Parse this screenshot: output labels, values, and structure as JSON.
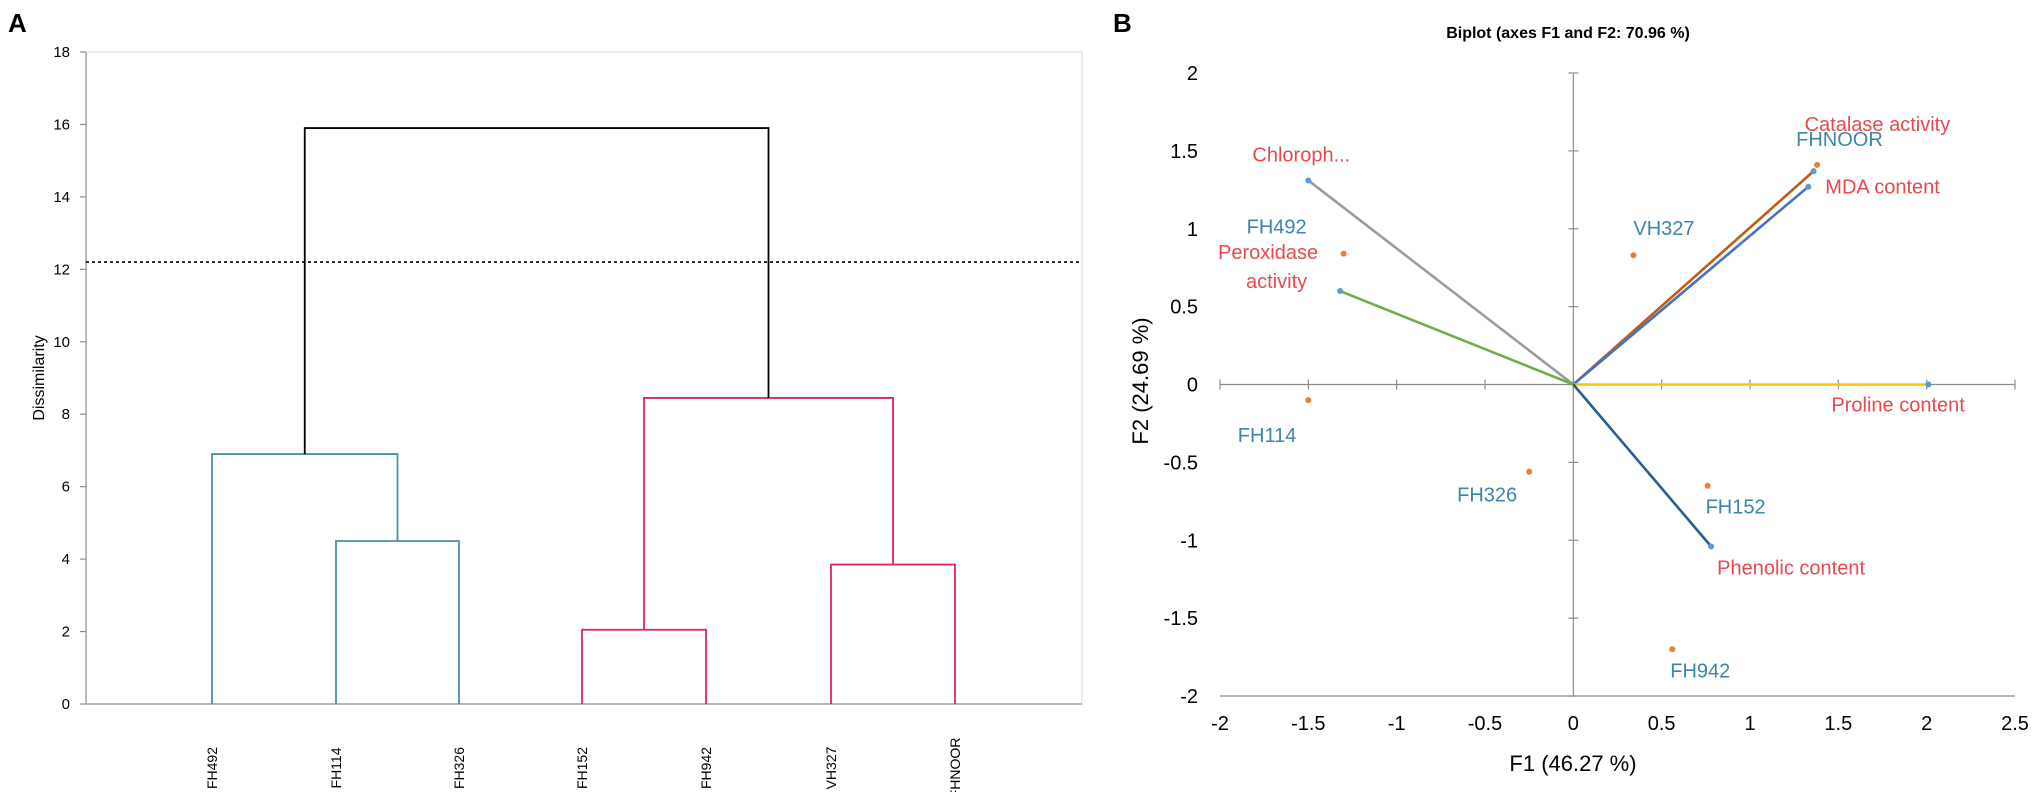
{
  "chart_data": [
    {
      "panel": "A",
      "type": "dendrogram",
      "title": "",
      "ylabel": "Dissimilarity",
      "xlabel": "",
      "ylim": [
        0,
        18
      ],
      "yticks": [
        0,
        2,
        4,
        6,
        8,
        10,
        12,
        14,
        16,
        18
      ],
      "leaves": [
        "FH492",
        "FH114",
        "FH326",
        "FH152",
        "FH942",
        "VH327",
        "FHNOOR"
      ],
      "merges": [
        {
          "left": "FH152",
          "right": "FH942",
          "height": 2.05,
          "group": "cluster2"
        },
        {
          "left": "VH327",
          "right": "FHNOOR",
          "height": 3.85,
          "group": "cluster2"
        },
        {
          "left": "FH114",
          "right": "FH326",
          "height": 4.5,
          "group": "cluster1"
        },
        {
          "left": "FH492",
          "right": "FH114+FH326",
          "height": 6.9,
          "group": "cluster1"
        },
        {
          "left": "FH152+FH942",
          "right": "VH327+FHNOOR",
          "height": 8.45,
          "group": "cluster2"
        },
        {
          "left": "cluster1",
          "right": "cluster2",
          "height": 15.9,
          "group": "root"
        }
      ],
      "cutoff_line": 12.2,
      "colors": {
        "cluster1": "#4a8fa6",
        "cluster2": "#e0255a",
        "root": "#000000",
        "cutoff": "#000000"
      }
    },
    {
      "panel": "B",
      "type": "biplot",
      "title": "Biplot (axes F1 and F2: 70.96 %)",
      "xlabel": "F1 (46.27 %)",
      "ylabel": "F2 (24.69 %)",
      "xlim": [
        -2,
        2.5
      ],
      "ylim": [
        -2,
        2
      ],
      "xticks": [
        "-2",
        "-1.5",
        "-1",
        "-0.5",
        "0",
        "0.5",
        "1",
        "1.5",
        "2",
        "2.5"
      ],
      "yticks": [
        "2",
        "1.5",
        "1",
        "0.5",
        "0",
        "-0.5",
        "-1",
        "-1.5",
        "-2"
      ],
      "observations": [
        {
          "name": "FH492",
          "x": -1.3,
          "y": 0.84
        },
        {
          "name": "FH114",
          "x": -1.5,
          "y": -0.1
        },
        {
          "name": "FH326",
          "x": -0.25,
          "y": -0.56
        },
        {
          "name": "VH327",
          "x": 0.34,
          "y": 0.83
        },
        {
          "name": "FHNOOR",
          "x": 1.38,
          "y": 1.41
        },
        {
          "name": "FH152",
          "x": 0.76,
          "y": -0.65
        },
        {
          "name": "FH942",
          "x": 0.56,
          "y": -1.7
        }
      ],
      "variables": [
        {
          "name": "Chloroph...",
          "x": -1.5,
          "y": 1.31,
          "color": "#9b9b9b"
        },
        {
          "name": "Peroxidase activity",
          "x": -1.32,
          "y": 0.6,
          "color": "#70ad47"
        },
        {
          "name": "Catalase activity",
          "x": 1.36,
          "y": 1.37,
          "color": "#c55a11"
        },
        {
          "name": "MDA content",
          "x": 1.33,
          "y": 1.27,
          "color": "#4472c4"
        },
        {
          "name": "Proline content",
          "x": 2.01,
          "y": 0.0,
          "color": "#ffc000"
        },
        {
          "name": "Phenolic content",
          "x": 0.78,
          "y": -1.04,
          "color": "#255e91"
        }
      ],
      "colors": {
        "observation_text": "#3d85a8",
        "observation_point": "#ed7d31",
        "variable_text": "#e8494d",
        "variable_point": "#5b9bd5"
      }
    }
  ]
}
